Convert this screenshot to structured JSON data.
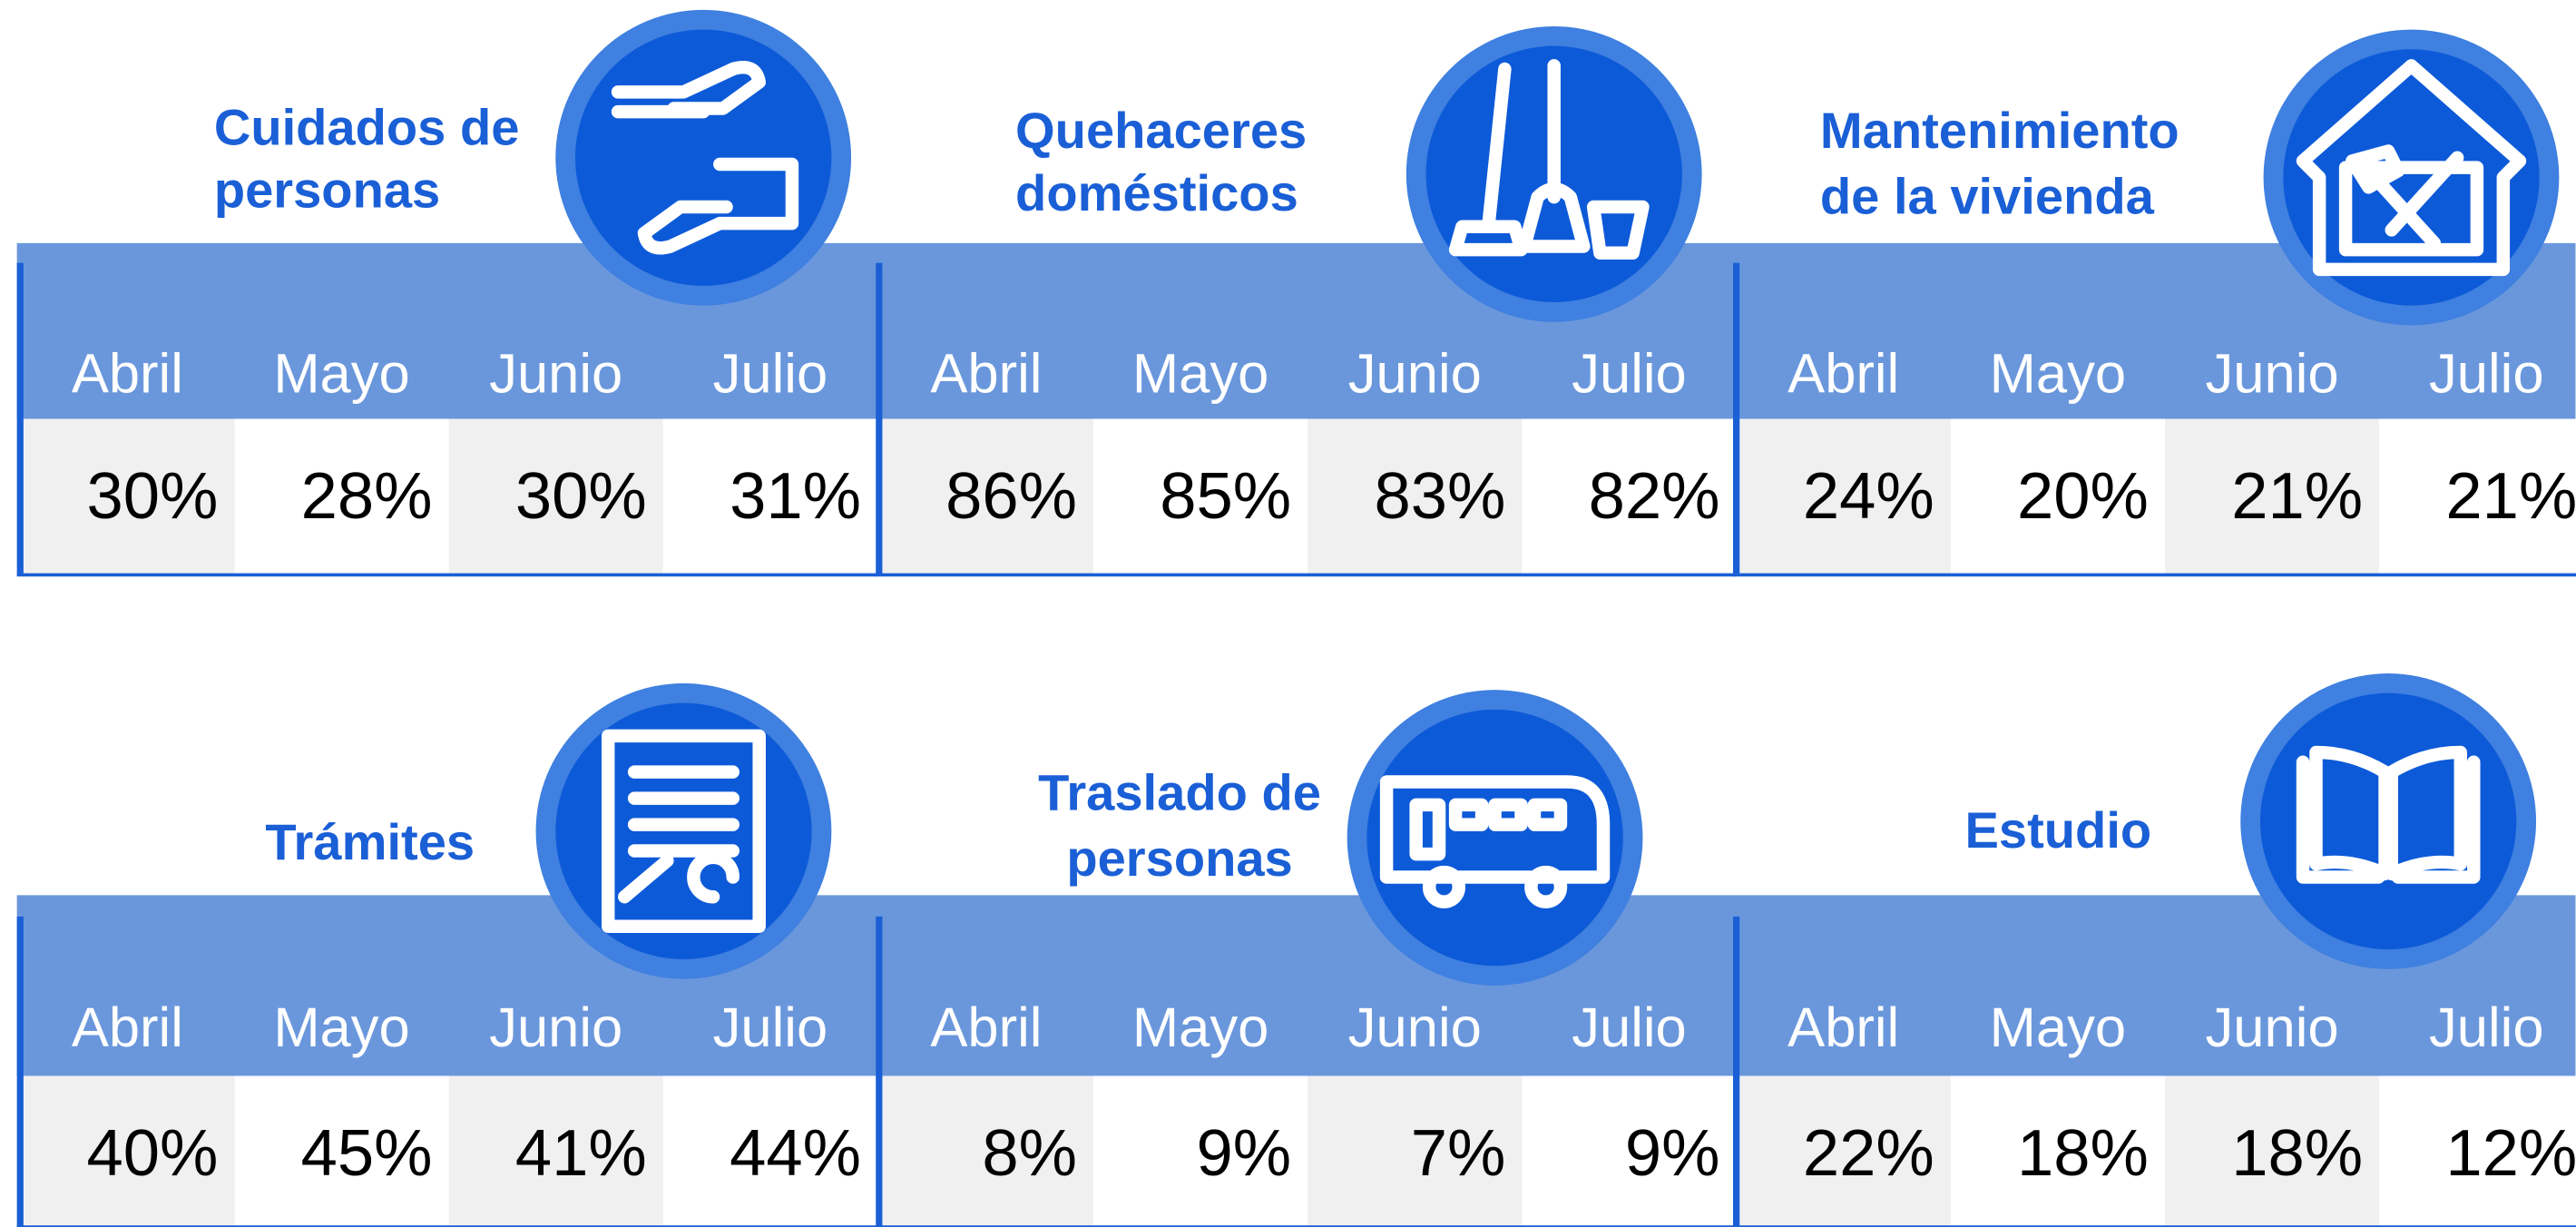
{
  "months": [
    "Abril",
    "Mayo",
    "Junio",
    "Julio"
  ],
  "panels": [
    {
      "title": [
        "Cuidados de",
        "personas"
      ],
      "values": [
        "30%",
        "28%",
        "30%",
        "31%"
      ]
    },
    {
      "title": [
        "Quehaceres",
        "domésticos"
      ],
      "values": [
        "86%",
        "85%",
        "83%",
        "82%"
      ]
    },
    {
      "title": [
        "Mantenimiento",
        "de la vivienda"
      ],
      "values": [
        "24%",
        "20%",
        "21%",
        "21%"
      ]
    },
    {
      "title": [
        "Trámites"
      ],
      "values": [
        "40%",
        "45%",
        "41%",
        "44%"
      ]
    },
    {
      "title": [
        "Traslado de",
        "personas"
      ],
      "values": [
        "8%",
        "9%",
        "7%",
        "9%"
      ]
    },
    {
      "title": [
        "Estudio"
      ],
      "values": [
        "22%",
        "18%",
        "18%",
        "12%"
      ]
    }
  ]
}
